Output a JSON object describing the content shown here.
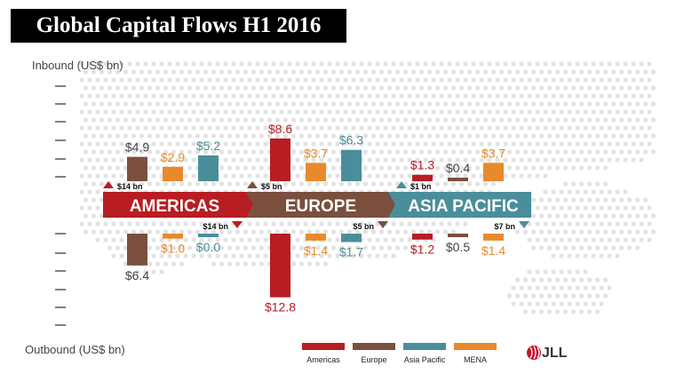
{
  "title": "Global Capital Flows H1 2016",
  "inbound_label": "Inbound (US$ bn)",
  "outbound_label": "Outbound (US$ bn)",
  "logo_text": "JLL",
  "colors": {
    "Americas": "#b81d23",
    "Europe": "#7a4f3e",
    "Asia Pacific": "#4a8e9c",
    "MENA": "#e8892b",
    "label_dark": "#444444"
  },
  "chart_data": {
    "type": "bar",
    "categories": [
      "AMERICAS",
      "EUROPE",
      "ASIA PACIFIC"
    ],
    "series_order": [
      "Americas",
      "Europe",
      "Asia Pacific",
      "MENA"
    ],
    "inbound": {
      "AMERICAS": [
        {
          "source": "Europe",
          "value": 4.9,
          "label": "$4.9"
        },
        {
          "source": "MENA",
          "value": 2.9,
          "label": "$2.9"
        },
        {
          "source": "Asia Pacific",
          "value": 5.2,
          "label": "$5.2"
        }
      ],
      "EUROPE": [
        {
          "source": "Americas",
          "value": 8.6,
          "label": "$8.6"
        },
        {
          "source": "MENA",
          "value": 3.7,
          "label": "$3.7"
        },
        {
          "source": "Asia Pacific",
          "value": 6.3,
          "label": "$6.3"
        }
      ],
      "ASIA PACIFIC": [
        {
          "source": "Americas",
          "value": 1.3,
          "label": "$1.3"
        },
        {
          "source": "Europe",
          "value": 0.4,
          "label": "$0.4"
        },
        {
          "source": "MENA",
          "value": 3.7,
          "label": "$3.7"
        }
      ]
    },
    "outbound": {
      "AMERICAS": [
        {
          "dest": "Europe",
          "value": 6.4,
          "label": "$6.4"
        },
        {
          "dest": "MENA",
          "value": 1.0,
          "label": "$1.0"
        },
        {
          "dest": "Asia Pacific",
          "value": 0.0,
          "label": "$0.0"
        }
      ],
      "EUROPE": [
        {
          "dest": "Americas",
          "value": 12.8,
          "label": "$12.8"
        },
        {
          "dest": "MENA",
          "value": 1.4,
          "label": "$1.4"
        },
        {
          "dest": "Asia Pacific",
          "value": 1.7,
          "label": "$1.7"
        }
      ],
      "ASIA PACIFIC": [
        {
          "dest": "Americas",
          "value": 1.2,
          "label": "$1.2"
        },
        {
          "dest": "Europe",
          "value": 0.5,
          "label": "$0.5"
        },
        {
          "dest": "MENA",
          "value": 1.4,
          "label": "$1.4"
        }
      ]
    },
    "totals": {
      "AMERICAS": {
        "inbound": "$14 bn",
        "outbound": "$14 bn"
      },
      "EUROPE": {
        "inbound": "$5 bn",
        "outbound": "$5 bn"
      },
      "ASIA PACIFIC": {
        "inbound": "$1 bn",
        "outbound": "$7 bn"
      }
    },
    "legend": [
      "Americas",
      "Europe",
      "Asia Pacific",
      "MENA"
    ],
    "legend_position": "bottom-right",
    "background": "dotted world map"
  }
}
